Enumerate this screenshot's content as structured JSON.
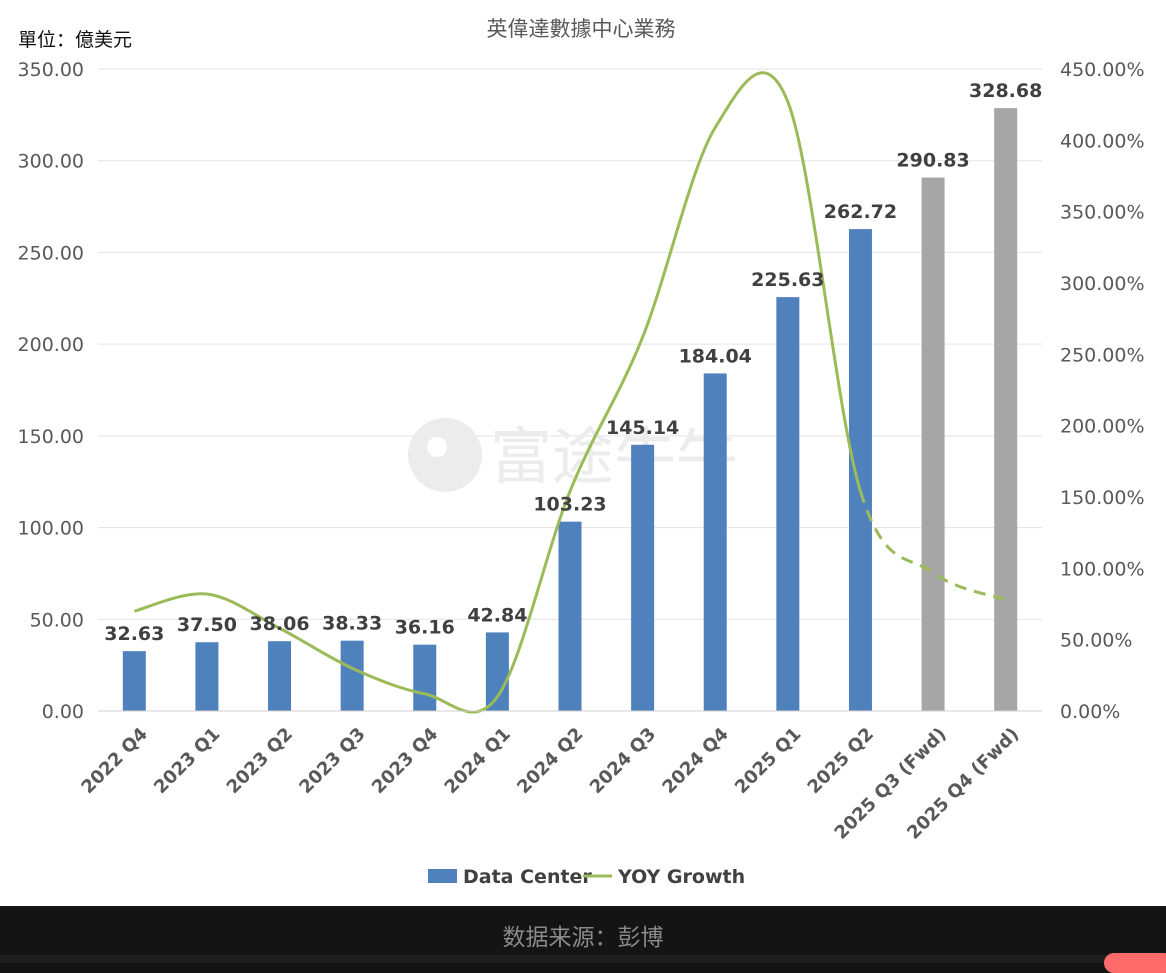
{
  "chart_data": {
    "type": "bar",
    "title": "英偉達數據中心業務",
    "unit_label": "單位：億美元",
    "categories": [
      "2022 Q4",
      "2023 Q1",
      "2023 Q2",
      "2023 Q3",
      "2023 Q4",
      "2024 Q1",
      "2024 Q2",
      "2024 Q3",
      "2024 Q4",
      "2025 Q1",
      "2025 Q2",
      "2025 Q3 (Fwd)",
      "2025 Q4 (Fwd)"
    ],
    "series": [
      {
        "name": "Data Center",
        "type": "bar",
        "axis": "left",
        "values": [
          32.63,
          37.5,
          38.06,
          38.33,
          36.16,
          42.84,
          103.23,
          145.14,
          184.04,
          225.63,
          262.72,
          290.83,
          328.68
        ],
        "labels": [
          "32.63",
          "37.50",
          "38.06",
          "38.33",
          "36.16",
          "42.84",
          "103.23",
          "145.14",
          "184.04",
          "225.63",
          "262.72",
          "290.83",
          "328.68"
        ],
        "forecast_from_index": 11,
        "color": "#4f81bd",
        "forecast_color": "#a6a6a6"
      },
      {
        "name": "YOY Growth",
        "type": "line",
        "axis": "right",
        "values": [
          70,
          82,
          58,
          30,
          12,
          10,
          154,
          262,
          409,
          427,
          154,
          97,
          78
        ],
        "dashed_from_index": 10,
        "color": "#9bbb59"
      }
    ],
    "y_left": {
      "ylim": [
        0,
        350
      ],
      "ticks": [
        "0.00",
        "50.00",
        "100.00",
        "150.00",
        "200.00",
        "250.00",
        "300.00",
        "350.00"
      ]
    },
    "y_right": {
      "ylim": [
        0,
        450
      ],
      "ticks": [
        "0.00%",
        "50.00%",
        "100.00%",
        "150.00%",
        "200.00%",
        "250.00%",
        "300.00%",
        "350.00%",
        "400.00%",
        "450.00%"
      ]
    },
    "grid": true,
    "legend": "bottom"
  },
  "watermark": "富途牛牛",
  "source_caption": "数据来源：彭博"
}
